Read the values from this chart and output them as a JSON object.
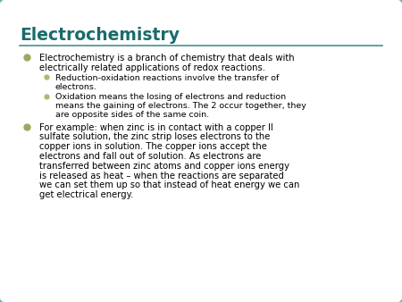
{
  "title": "Electrochemistry",
  "title_color": "#1a6b6b",
  "title_fontsize": 13.5,
  "background_color": "#ffffff",
  "border_color": "#6aafaf",
  "line_color": "#4a8f8f",
  "bullet_color": "#9aaa60",
  "sub_bullet_color": "#b0b870",
  "text_color": "#000000",
  "body_fontsize": 7.2,
  "sub_fontsize": 6.8,
  "bullet1_line1": "Electrochemistry is a branch of chemistry that deals with",
  "bullet1_line2": "electrically related applications of redox reactions.",
  "sub1_line1": "Reduction-oxidation reactions involve the transfer of",
  "sub1_line2": "electrons.",
  "sub2_line1": "Oxidation means the losing of electrons and reduction",
  "sub2_line2": "means the gaining of electrons. The 2 occur together, they",
  "sub2_line3": "are opposite sides of the same coin.",
  "bullet2_line1": "For example: when zinc is in contact with a copper II",
  "bullet2_line2": "sulfate solution, the zinc strip loses electrons to the",
  "bullet2_line3": "copper ions in solution. The copper ions accept the",
  "bullet2_line4": "electrons and fall out of solution. As electrons are",
  "bullet2_line5": "transferred between zinc atoms and copper ions energy",
  "bullet2_line6": "is released as heat – when the reactions are separated",
  "bullet2_line7": "we can set them up so that instead of heat energy we can",
  "bullet2_line8": "get electrical energy."
}
